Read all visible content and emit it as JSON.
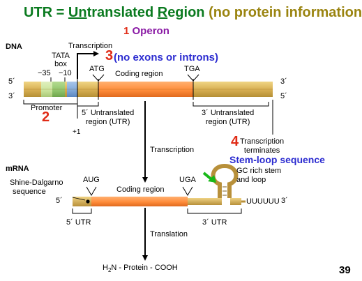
{
  "title": {
    "p1": "UTR = ",
    "p2": "Un",
    "p3": "t",
    "p4": "ranslated ",
    "p5": "R",
    "p6": "egion",
    "p7": " (no protein information)"
  },
  "step1": {
    "num": "1",
    "text": "Operon"
  },
  "dna": {
    "label": "DNA",
    "transcription_label": "Transcription",
    "step3_num": "3",
    "step3_text": "(no exons or introns)",
    "tata_line1": "TATA",
    "tata_line2": "box",
    "minus35": "−35",
    "minus10": "−10",
    "atg": "ATG",
    "tga": "TGA",
    "coding_region": "Coding region",
    "five_prime": "5´",
    "three_prime": "3´",
    "promoter": "Promoter",
    "step2_num": "2",
    "utr5_line1": "5´ Untranslated",
    "utr5_line2": "region (UTR)",
    "utr3_line1": "3´ Untranslated",
    "utr3_line2": "region (UTR)",
    "plus1": "+1",
    "step4_num": "4",
    "term_line1": "Transcription",
    "term_line2": "terminates",
    "stem_loop": "Stem-loop sequence"
  },
  "middle": {
    "transcription": "Transcription",
    "translation": "Translation"
  },
  "mrna": {
    "label": "mRNA",
    "aug": "AUG",
    "uga": "UGA",
    "coding_region": "Coding region",
    "shine_line1": "Shine-Dalgarno",
    "shine_line2": "sequence",
    "five_prime": "5´",
    "three_prime": "3´",
    "polyu": "UUUUUU",
    "gc_line1": "GC rich stem",
    "gc_line2": "and loop",
    "utr5": "5´ UTR",
    "utr3": "3´ UTR"
  },
  "protein": {
    "prefix": "H",
    "sub": "2",
    "suffix": "N - Protein - COOH"
  },
  "page_number": "39",
  "colors": {
    "title_green": "#0a7a1f",
    "olive": "#9a8410",
    "purple": "#8a1aa5",
    "blue": "#2b2bd0",
    "red": "#e02b16",
    "orange": "#ff8c3a",
    "tan": "#d9b255",
    "blue_segment": "#7ea6d8",
    "light_green": "#c9e39a",
    "green": "#8fc46b"
  }
}
